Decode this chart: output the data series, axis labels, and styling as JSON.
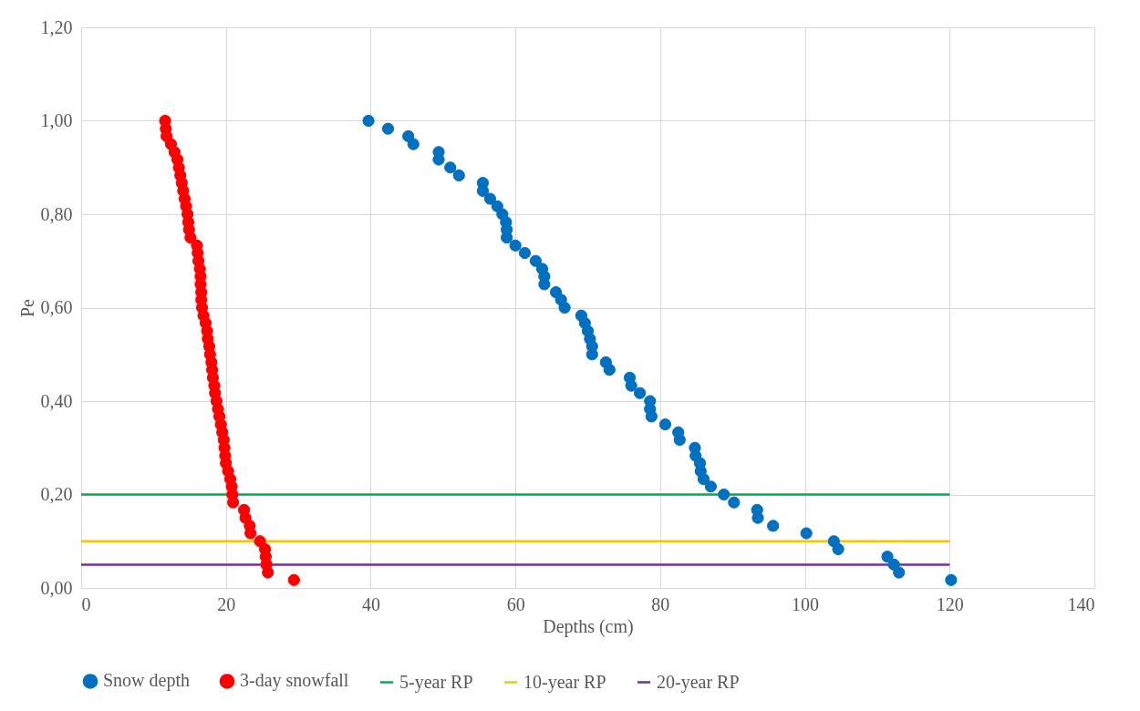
{
  "chart_data": {
    "type": "scatter",
    "xlabel": "Depths (cm)",
    "ylabel": "Pe",
    "xlim": [
      0,
      140
    ],
    "ylim": [
      0,
      1.2
    ],
    "xticks": [
      0,
      20,
      40,
      60,
      80,
      100,
      120,
      140
    ],
    "yticks": [
      {
        "value": 0,
        "label": "0,00"
      },
      {
        "value": 0.2,
        "label": "0,20"
      },
      {
        "value": 0.4,
        "label": "0,40"
      },
      {
        "value": 0.6,
        "label": "0,60"
      },
      {
        "value": 0.8,
        "label": "0,80"
      },
      {
        "value": 1.0,
        "label": "1,00"
      },
      {
        "value": 1.2,
        "label": "1,20"
      }
    ],
    "grid": true,
    "legend": "bottom",
    "line_style": "solid",
    "series": [
      {
        "name": "Snow depth",
        "marker": "circle",
        "color": "#0070c0",
        "x": [
          39.7,
          42.4,
          45.2,
          45.9,
          49.4,
          49.4,
          51.0,
          52.2,
          55.5,
          55.5,
          56.5,
          57.5,
          58.2,
          58.7,
          58.8,
          58.8,
          60.0,
          61.3,
          62.8,
          63.7,
          64.0,
          64.0,
          65.6,
          66.3,
          66.8,
          69.1,
          69.6,
          70.0,
          70.3,
          70.6,
          70.6,
          72.5,
          73.0,
          75.8,
          76.0,
          77.2,
          78.6,
          78.6,
          78.8,
          80.7,
          82.5,
          82.7,
          84.8,
          84.9,
          85.5,
          85.6,
          86.0,
          87.0,
          88.8,
          90.2,
          93.4,
          93.5,
          95.6,
          100.2,
          104.0,
          104.6,
          111.4,
          112.3,
          113.0,
          120.2
        ],
        "values": [
          1.0,
          0.983,
          0.967,
          0.95,
          0.933,
          0.917,
          0.9,
          0.883,
          0.867,
          0.85,
          0.833,
          0.817,
          0.8,
          0.783,
          0.767,
          0.75,
          0.733,
          0.717,
          0.7,
          0.683,
          0.667,
          0.65,
          0.633,
          0.617,
          0.6,
          0.583,
          0.567,
          0.55,
          0.533,
          0.517,
          0.5,
          0.483,
          0.467,
          0.45,
          0.433,
          0.417,
          0.4,
          0.383,
          0.367,
          0.35,
          0.333,
          0.317,
          0.3,
          0.283,
          0.267,
          0.25,
          0.233,
          0.217,
          0.2,
          0.183,
          0.167,
          0.15,
          0.133,
          0.117,
          0.1,
          0.083,
          0.067,
          0.05,
          0.033,
          0.017
        ]
      },
      {
        "name": "3-day snowfall",
        "marker": "circle",
        "color": "#ff0000",
        "x": [
          11.6,
          11.7,
          11.8,
          12.4,
          12.9,
          13.3,
          13.5,
          13.7,
          13.9,
          14.1,
          14.3,
          14.5,
          14.7,
          14.8,
          14.9,
          15.1,
          16.0,
          16.1,
          16.2,
          16.4,
          16.5,
          16.5,
          16.6,
          16.6,
          16.7,
          16.9,
          17.2,
          17.4,
          17.5,
          17.7,
          17.8,
          18.0,
          18.1,
          18.2,
          18.4,
          18.5,
          18.7,
          18.9,
          19.1,
          19.3,
          19.5,
          19.7,
          19.8,
          19.9,
          20.0,
          20.3,
          20.6,
          20.8,
          20.9,
          21.0,
          22.5,
          22.7,
          23.3,
          23.4,
          24.7,
          25.4,
          25.5,
          25.6,
          25.8,
          29.4
        ],
        "values": [
          1.0,
          0.983,
          0.967,
          0.95,
          0.933,
          0.917,
          0.9,
          0.883,
          0.867,
          0.85,
          0.833,
          0.817,
          0.8,
          0.783,
          0.767,
          0.75,
          0.733,
          0.717,
          0.7,
          0.683,
          0.667,
          0.65,
          0.633,
          0.617,
          0.6,
          0.583,
          0.567,
          0.55,
          0.533,
          0.517,
          0.5,
          0.483,
          0.467,
          0.45,
          0.433,
          0.417,
          0.4,
          0.383,
          0.367,
          0.35,
          0.333,
          0.317,
          0.3,
          0.283,
          0.267,
          0.25,
          0.233,
          0.217,
          0.2,
          0.183,
          0.167,
          0.15,
          0.133,
          0.117,
          0.1,
          0.083,
          0.067,
          0.05,
          0.033,
          0.017
        ]
      },
      {
        "name": "5-year RP",
        "type": "line",
        "marker": "none",
        "color": "#00b050",
        "x": [
          0,
          120
        ],
        "values": [
          0.2,
          0.2
        ]
      },
      {
        "name": "10-year RP",
        "type": "line",
        "marker": "none",
        "color": "#ffc000",
        "x": [
          0,
          120
        ],
        "values": [
          0.1,
          0.1
        ]
      },
      {
        "name": "20-year RP",
        "type": "line",
        "marker": "none",
        "color": "#7030a0",
        "x": [
          0,
          120
        ],
        "values": [
          0.05,
          0.05
        ]
      }
    ]
  }
}
